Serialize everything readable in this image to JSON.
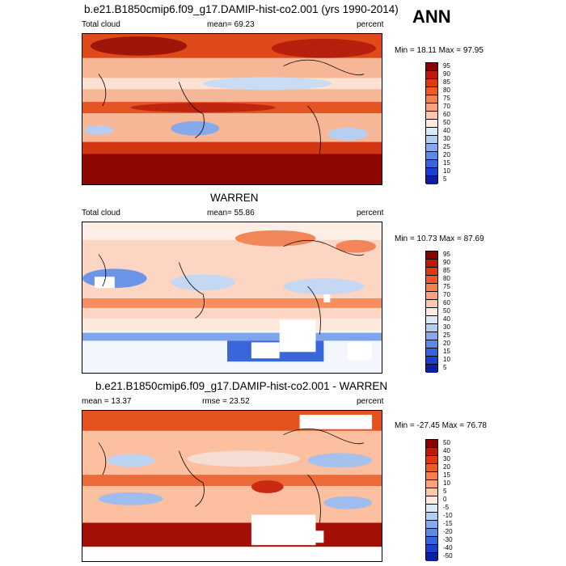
{
  "season": "ANN",
  "panels": [
    {
      "title": "b.e21.B1850cmip6.f09_g17.DAMIP-hist-co2.001 (yrs 1990-2014)",
      "left_label": "Total cloud",
      "mid_label": "mean=  69.23",
      "right_label": "percent",
      "minmax": "Min =  18.11 Max =  97.95",
      "levels": [
        "95",
        "90",
        "85",
        "80",
        "75",
        "70",
        "60",
        "50",
        "40",
        "30",
        "25",
        "20",
        "15",
        "10",
        "5"
      ],
      "colors": [
        "#8b0000",
        "#c0180a",
        "#dd3a12",
        "#ef5a24",
        "#f77f4c",
        "#fba27c",
        "#fdc7ab",
        "#fdebdf",
        "#dbe8f6",
        "#b3cdf0",
        "#84aaeb",
        "#5c88e6",
        "#3765df",
        "#1841d2",
        "#0b1fa5"
      ]
    },
    {
      "title": "WARREN",
      "left_label": "Total cloud",
      "mid_label": "mean=  55.86",
      "right_label": "percent",
      "minmax": "Min =  10.73 Max =  87.69",
      "levels": [
        "95",
        "90",
        "85",
        "80",
        "75",
        "70",
        "60",
        "50",
        "40",
        "30",
        "25",
        "20",
        "15",
        "10",
        "5"
      ],
      "colors": [
        "#8b0000",
        "#c0180a",
        "#dd3a12",
        "#ef5a24",
        "#f77f4c",
        "#fba27c",
        "#fdc7ab",
        "#fdebdf",
        "#dbe8f6",
        "#b3cdf0",
        "#84aaeb",
        "#5c88e6",
        "#3765df",
        "#1841d2",
        "#0b1fa5"
      ]
    },
    {
      "title": "b.e21.B1850cmip6.f09_g17.DAMIP-hist-co2.001 - WARREN",
      "left_label": "mean =  13.37",
      "mid_label": "rmse =  23.52",
      "right_label": "percent",
      "minmax": "Min = -27.45 Max =  76.78",
      "levels": [
        "50",
        "40",
        "30",
        "20",
        "15",
        "10",
        "5",
        "0",
        "-5",
        "-10",
        "-15",
        "-20",
        "-30",
        "-40",
        "-50"
      ],
      "colors": [
        "#8b0000",
        "#c0180a",
        "#dd3a12",
        "#ef5a24",
        "#f77f4c",
        "#fba27c",
        "#fdc7ab",
        "#fdebdf",
        "#dbe8f6",
        "#b3cdf0",
        "#84aaeb",
        "#5c88e6",
        "#3765df",
        "#1841d2",
        "#0b1fa5"
      ]
    }
  ]
}
